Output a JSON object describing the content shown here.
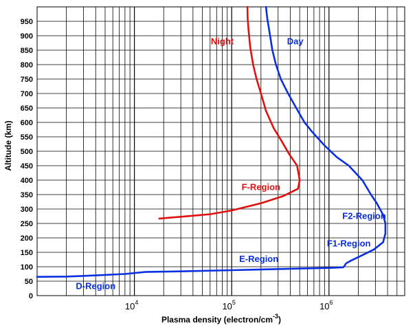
{
  "chart_data": {
    "type": "line",
    "title": "",
    "xlabel": "Plasma density (electron/cm",
    "xlabel_sup": "-3",
    "xlabel_close": ")",
    "ylabel": "Altitude (km)",
    "xscale": "log",
    "xlim": [
      1000,
      6000000
    ],
    "ylim": [
      0,
      1000
    ],
    "grid": true,
    "x_ticks": [
      {
        "base": "10",
        "exp": "4",
        "value": 10000
      },
      {
        "base": "10",
        "exp": "5",
        "value": 100000
      },
      {
        "base": "10",
        "exp": "6",
        "value": 1000000
      }
    ],
    "y_ticks": [
      "0",
      "50",
      "100",
      "150",
      "200",
      "250",
      "300",
      "350",
      "400",
      "450",
      "500",
      "550",
      "600",
      "650",
      "700",
      "750",
      "800",
      "850",
      "900",
      "950"
    ],
    "series": [
      {
        "name": "Day",
        "color": "#0a2fe0",
        "points": [
          [
            1000,
            65
          ],
          [
            2000,
            66
          ],
          [
            4000,
            70
          ],
          [
            8000,
            75
          ],
          [
            13000,
            82
          ],
          [
            30000,
            84
          ],
          [
            100000,
            88
          ],
          [
            400000,
            93
          ],
          [
            1000000,
            96
          ],
          [
            1400000,
            98
          ],
          [
            1450000,
            104
          ],
          [
            1500000,
            112
          ],
          [
            1700000,
            122
          ],
          [
            2200000,
            140
          ],
          [
            2900000,
            160
          ],
          [
            3600000,
            185
          ],
          [
            3800000,
            215
          ],
          [
            3800000,
            250
          ],
          [
            3600000,
            280
          ],
          [
            3100000,
            320
          ],
          [
            2700000,
            350
          ],
          [
            2200000,
            400
          ],
          [
            1600000,
            450
          ],
          [
            1200000,
            480
          ],
          [
            900000,
            520
          ],
          [
            660000,
            570
          ],
          [
            560000,
            600
          ],
          [
            460000,
            650
          ],
          [
            380000,
            700
          ],
          [
            320000,
            750
          ],
          [
            285000,
            800
          ],
          [
            262000,
            850
          ],
          [
            248000,
            900
          ],
          [
            232000,
            960
          ],
          [
            225000,
            1000
          ]
        ]
      },
      {
        "name": "Night",
        "color": "#e01010",
        "points": [
          [
            18000,
            267
          ],
          [
            30000,
            273
          ],
          [
            60000,
            282
          ],
          [
            100000,
            295
          ],
          [
            200000,
            320
          ],
          [
            340000,
            345
          ],
          [
            480000,
            370
          ],
          [
            500000,
            400
          ],
          [
            470000,
            450
          ],
          [
            390000,
            490
          ],
          [
            320000,
            540
          ],
          [
            270000,
            580
          ],
          [
            225000,
            640
          ],
          [
            200000,
            700
          ],
          [
            180000,
            750
          ],
          [
            166000,
            800
          ],
          [
            155000,
            860
          ],
          [
            149000,
            920
          ],
          [
            146000,
            960
          ],
          [
            145000,
            1000
          ]
        ]
      }
    ],
    "annotations": [
      {
        "text": "Night",
        "color": "#e01010",
        "x": 80000,
        "y": 870
      },
      {
        "text": "Day",
        "color": "#0a2fe0",
        "x": 450000,
        "y": 870
      },
      {
        "text": "F-Region",
        "color": "#e01010",
        "x": 200000,
        "y": 365
      },
      {
        "text": "F2-Region",
        "color": "#0a2fe0",
        "x": 2300000,
        "y": 265
      },
      {
        "text": "F1-Region",
        "color": "#0a2fe0",
        "x": 1600000,
        "y": 170
      },
      {
        "text": "E-Region",
        "color": "#0a2fe0",
        "x": 190000,
        "y": 117
      },
      {
        "text": "D-Region",
        "color": "#0a2fe0",
        "x": 4000,
        "y": 23
      }
    ]
  }
}
